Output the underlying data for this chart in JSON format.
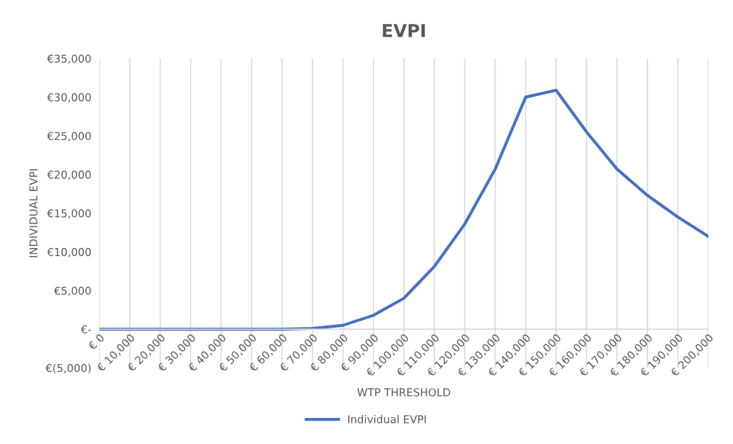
{
  "chart_data": {
    "type": "line",
    "title": "EVPI",
    "xlabel": "WTP THRESHOLD",
    "ylabel": "INDIVIDUAL EVPI",
    "categories": [
      "€ 0",
      "€ 10,000",
      "€ 20,000",
      "€ 30,000",
      "€ 40,000",
      "€ 50,000",
      "€ 60,000",
      "€ 70,000",
      "€ 80,000",
      "€ 90,000",
      "€ 100,000",
      "€ 110,000",
      "€ 120,000",
      "€ 130,000",
      "€ 140,000",
      "€ 150,000",
      "€ 160,000",
      "€ 170,000",
      "€ 180,000",
      "€ 190,000",
      "€ 200,000"
    ],
    "series": [
      {
        "name": "Individual EVPI",
        "color": "#4472c4",
        "values": [
          0,
          0,
          0,
          0,
          0,
          0,
          0,
          100,
          500,
          1800,
          4000,
          8100,
          13600,
          20700,
          30000,
          30900,
          25500,
          20700,
          17300,
          14500,
          12000
        ]
      }
    ],
    "ylim": [
      -5000,
      35000
    ],
    "yticks": [
      {
        "value": -5000,
        "label": "€(5,000)"
      },
      {
        "value": 0,
        "label": "€-"
      },
      {
        "value": 5000,
        "label": "€5,000"
      },
      {
        "value": 10000,
        "label": "€10,000"
      },
      {
        "value": 15000,
        "label": "€15,000"
      },
      {
        "value": 20000,
        "label": "€20,000"
      },
      {
        "value": 25000,
        "label": "€25,000"
      },
      {
        "value": 30000,
        "label": "€30,000"
      },
      {
        "value": 35000,
        "label": "€35,000"
      }
    ],
    "grid": "x",
    "legend": "bottom",
    "marker": "none",
    "line_style": "solid"
  }
}
